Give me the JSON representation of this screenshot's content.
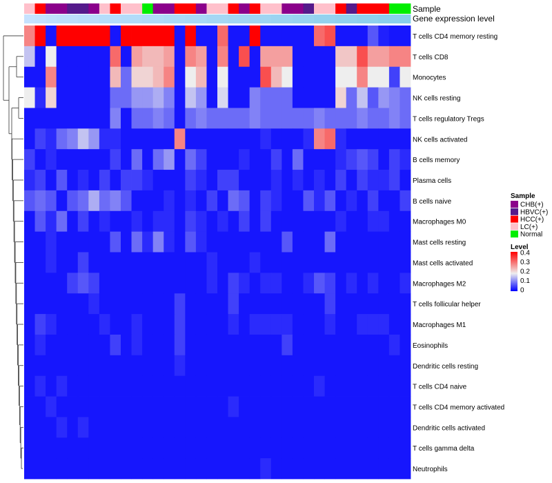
{
  "chart_data": {
    "type": "heatmap",
    "title": "",
    "annotation_labels": [
      "Sample",
      "Gene expression level"
    ],
    "rows": [
      "T cells CD4 memory resting",
      "T cells CD8",
      "Monocytes",
      "NK cells resting",
      "T cells regulatory  Tregs",
      "NK cells activated",
      "B cells memory",
      "Plasma cells",
      "B cells naive",
      "Macrophages M0",
      "Mast cells resting",
      "Mast cells activated",
      "Macrophages M2",
      "T cells follicular helper",
      "Macrophages M1",
      "Eosinophils",
      "Dendritic cells resting",
      "T cells CD4 naive",
      "T cells CD4 memory activated",
      "Dendritic cells activated",
      "T cells gamma delta",
      "Neutrophils"
    ],
    "sample_annotation": [
      "LC(+)",
      "HCC(+)",
      "CHB(+)",
      "CHB(+)",
      "HBVC(+)",
      "HBVC(+)",
      "CHB(+)",
      "LC(+)",
      "HCC(+)",
      "LC(+)",
      "LC(+)",
      "Normal",
      "CHB(+)",
      "CHB(+)",
      "HCC(+)",
      "HCC(+)",
      "CHB(+)",
      "LC(+)",
      "LC(+)",
      "HCC(+)",
      "CHB(+)",
      "HCC(+)",
      "LC(+)",
      "LC(+)",
      "CHB(+)",
      "CHB(+)",
      "HBVC(+)",
      "LC(+)",
      "LC(+)",
      "HCC(+)",
      "HBVC(+)",
      "HCC(+)",
      "HCC(+)",
      "HCC(+)",
      "Normal",
      "Normal"
    ],
    "level_annotation": [
      0.27,
      0.28,
      0.29,
      0.3,
      0.3,
      0.31,
      0.31,
      0.32,
      0.32,
      0.33,
      0.33,
      0.34,
      0.34,
      0.35,
      0.35,
      0.36,
      0.36,
      0.37,
      0.37,
      0.38,
      0.38,
      0.39,
      0.39,
      0.4,
      0.4,
      0.41,
      0.41,
      0.42,
      0.42,
      0.43,
      0.43,
      0.44,
      0.44,
      0.45,
      0.45,
      0.46
    ],
    "values": [
      [
        0.3,
        0.4,
        0.02,
        0.4,
        0.4,
        0.4,
        0.4,
        0.4,
        0.02,
        0.4,
        0.4,
        0.4,
        0.4,
        0.4,
        0.02,
        0.4,
        0.02,
        0.02,
        0.32,
        0.02,
        0.02,
        0.4,
        0.02,
        0.02,
        0.02,
        0.02,
        0.02,
        0.32,
        0.34,
        0.02,
        0.02,
        0.02,
        0.08,
        0.03,
        0.02,
        0.02
      ],
      [
        0.18,
        0.02,
        0.22,
        0.02,
        0.02,
        0.02,
        0.02,
        0.02,
        0.32,
        0.02,
        0.28,
        0.26,
        0.26,
        0.28,
        0.02,
        0.3,
        0.28,
        0.02,
        0.3,
        0.02,
        0.34,
        0.02,
        0.28,
        0.28,
        0.28,
        0.02,
        0.02,
        0.02,
        0.02,
        0.25,
        0.25,
        0.34,
        0.28,
        0.28,
        0.3,
        0.3
      ],
      [
        0.02,
        0.02,
        0.3,
        0.02,
        0.02,
        0.02,
        0.02,
        0.02,
        0.26,
        0.1,
        0.24,
        0.24,
        0.26,
        0.3,
        0.02,
        0.22,
        0.26,
        0.02,
        0.22,
        0.02,
        0.02,
        0.02,
        0.34,
        0.26,
        0.22,
        0.02,
        0.02,
        0.02,
        0.02,
        0.22,
        0.22,
        0.3,
        0.22,
        0.22,
        0.06,
        0.22
      ],
      [
        0.22,
        0.04,
        0.24,
        0.02,
        0.02,
        0.02,
        0.02,
        0.02,
        0.1,
        0.1,
        0.14,
        0.14,
        0.16,
        0.12,
        0.02,
        0.18,
        0.14,
        0.02,
        0.2,
        0.02,
        0.02,
        0.12,
        0.1,
        0.1,
        0.1,
        0.02,
        0.02,
        0.02,
        0.02,
        0.24,
        0.1,
        0.18,
        0.08,
        0.14,
        0.12,
        0.1
      ],
      [
        0.02,
        0.02,
        0.02,
        0.02,
        0.02,
        0.02,
        0.02,
        0.02,
        0.12,
        0.02,
        0.1,
        0.1,
        0.12,
        0.1,
        0.02,
        0.1,
        0.12,
        0.1,
        0.1,
        0.1,
        0.1,
        0.12,
        0.1,
        0.1,
        0.1,
        0.1,
        0.1,
        0.12,
        0.1,
        0.1,
        0.1,
        0.12,
        0.1,
        0.1,
        0.12,
        0.1
      ],
      [
        0.02,
        0.06,
        0.04,
        0.1,
        0.12,
        0.18,
        0.14,
        0.04,
        0.04,
        0.02,
        0.02,
        0.02,
        0.02,
        0.02,
        0.3,
        0.02,
        0.02,
        0.02,
        0.02,
        0.02,
        0.02,
        0.02,
        0.04,
        0.02,
        0.02,
        0.02,
        0.04,
        0.3,
        0.32,
        0.04,
        0.02,
        0.02,
        0.02,
        0.02,
        0.02,
        0.02
      ],
      [
        0.06,
        0.02,
        0.04,
        0.02,
        0.02,
        0.02,
        0.02,
        0.02,
        0.06,
        0.02,
        0.1,
        0.02,
        0.1,
        0.14,
        0.02,
        0.1,
        0.06,
        0.02,
        0.02,
        0.02,
        0.04,
        0.02,
        0.02,
        0.06,
        0.02,
        0.1,
        0.02,
        0.02,
        0.02,
        0.04,
        0.06,
        0.08,
        0.06,
        0.02,
        0.06,
        0.04
      ],
      [
        0.04,
        0.06,
        0.02,
        0.08,
        0.02,
        0.04,
        0.02,
        0.06,
        0.02,
        0.06,
        0.06,
        0.04,
        0.02,
        0.02,
        0.02,
        0.06,
        0.04,
        0.02,
        0.06,
        0.06,
        0.02,
        0.02,
        0.02,
        0.04,
        0.02,
        0.04,
        0.02,
        0.04,
        0.02,
        0.06,
        0.02,
        0.06,
        0.04,
        0.04,
        0.06,
        0.02
      ],
      [
        0.08,
        0.1,
        0.08,
        0.02,
        0.08,
        0.1,
        0.16,
        0.1,
        0.12,
        0.08,
        0.02,
        0.02,
        0.02,
        0.04,
        0.02,
        0.04,
        0.02,
        0.06,
        0.02,
        0.1,
        0.08,
        0.02,
        0.06,
        0.04,
        0.02,
        0.02,
        0.08,
        0.04,
        0.08,
        0.02,
        0.04,
        0.02,
        0.06,
        0.02,
        0.02,
        0.06
      ],
      [
        0.02,
        0.08,
        0.04,
        0.1,
        0.02,
        0.06,
        0.02,
        0.04,
        0.02,
        0.02,
        0.04,
        0.02,
        0.04,
        0.04,
        0.02,
        0.06,
        0.04,
        0.02,
        0.04,
        0.02,
        0.06,
        0.02,
        0.06,
        0.02,
        0.02,
        0.02,
        0.02,
        0.02,
        0.02,
        0.04,
        0.02,
        0.02,
        0.04,
        0.04,
        0.02,
        0.02
      ],
      [
        0.02,
        0.02,
        0.04,
        0.02,
        0.02,
        0.02,
        0.02,
        0.02,
        0.08,
        0.02,
        0.1,
        0.04,
        0.12,
        0.04,
        0.02,
        0.08,
        0.04,
        0.02,
        0.02,
        0.02,
        0.02,
        0.02,
        0.02,
        0.02,
        0.08,
        0.02,
        0.02,
        0.02,
        0.1,
        0.02,
        0.02,
        0.02,
        0.02,
        0.02,
        0.02,
        0.02
      ],
      [
        0.02,
        0.02,
        0.04,
        0.02,
        0.02,
        0.06,
        0.02,
        0.02,
        0.02,
        0.02,
        0.02,
        0.02,
        0.02,
        0.02,
        0.02,
        0.02,
        0.02,
        0.04,
        0.02,
        0.02,
        0.02,
        0.04,
        0.02,
        0.02,
        0.02,
        0.02,
        0.02,
        0.02,
        0.02,
        0.02,
        0.02,
        0.02,
        0.02,
        0.02,
        0.02,
        0.02
      ],
      [
        0.02,
        0.02,
        0.02,
        0.02,
        0.06,
        0.08,
        0.06,
        0.02,
        0.02,
        0.02,
        0.02,
        0.02,
        0.02,
        0.02,
        0.02,
        0.02,
        0.02,
        0.04,
        0.02,
        0.06,
        0.04,
        0.02,
        0.04,
        0.04,
        0.02,
        0.02,
        0.04,
        0.08,
        0.06,
        0.02,
        0.04,
        0.02,
        0.04,
        0.02,
        0.02,
        0.04
      ],
      [
        0.02,
        0.02,
        0.02,
        0.02,
        0.02,
        0.02,
        0.04,
        0.02,
        0.02,
        0.02,
        0.02,
        0.02,
        0.02,
        0.02,
        0.06,
        0.02,
        0.02,
        0.02,
        0.02,
        0.06,
        0.02,
        0.02,
        0.02,
        0.02,
        0.02,
        0.02,
        0.02,
        0.02,
        0.06,
        0.02,
        0.02,
        0.02,
        0.02,
        0.02,
        0.02,
        0.02
      ],
      [
        0.02,
        0.06,
        0.04,
        0.02,
        0.02,
        0.02,
        0.02,
        0.04,
        0.02,
        0.02,
        0.04,
        0.02,
        0.02,
        0.02,
        0.06,
        0.02,
        0.02,
        0.02,
        0.02,
        0.04,
        0.02,
        0.04,
        0.04,
        0.04,
        0.04,
        0.02,
        0.02,
        0.02,
        0.04,
        0.02,
        0.02,
        0.04,
        0.04,
        0.04,
        0.02,
        0.02
      ],
      [
        0.02,
        0.04,
        0.02,
        0.02,
        0.02,
        0.02,
        0.02,
        0.02,
        0.06,
        0.02,
        0.04,
        0.02,
        0.02,
        0.02,
        0.06,
        0.02,
        0.02,
        0.02,
        0.02,
        0.02,
        0.02,
        0.02,
        0.02,
        0.02,
        0.06,
        0.02,
        0.02,
        0.02,
        0.02,
        0.02,
        0.02,
        0.02,
        0.02,
        0.02,
        0.04,
        0.02
      ],
      [
        0.02,
        0.02,
        0.02,
        0.02,
        0.02,
        0.02,
        0.02,
        0.02,
        0.02,
        0.02,
        0.02,
        0.02,
        0.02,
        0.02,
        0.04,
        0.02,
        0.02,
        0.02,
        0.02,
        0.02,
        0.02,
        0.02,
        0.02,
        0.02,
        0.02,
        0.02,
        0.02,
        0.02,
        0.02,
        0.02,
        0.02,
        0.02,
        0.02,
        0.02,
        0.02,
        0.02
      ],
      [
        0.02,
        0.04,
        0.02,
        0.04,
        0.02,
        0.02,
        0.02,
        0.02,
        0.02,
        0.02,
        0.02,
        0.02,
        0.02,
        0.02,
        0.02,
        0.02,
        0.02,
        0.02,
        0.02,
        0.02,
        0.02,
        0.02,
        0.02,
        0.02,
        0.02,
        0.02,
        0.02,
        0.04,
        0.02,
        0.02,
        0.02,
        0.02,
        0.02,
        0.02,
        0.02,
        0.02
      ],
      [
        0.02,
        0.02,
        0.04,
        0.02,
        0.02,
        0.02,
        0.02,
        0.02,
        0.02,
        0.02,
        0.02,
        0.02,
        0.02,
        0.02,
        0.02,
        0.02,
        0.02,
        0.02,
        0.02,
        0.04,
        0.02,
        0.02,
        0.02,
        0.02,
        0.02,
        0.02,
        0.02,
        0.02,
        0.02,
        0.02,
        0.02,
        0.02,
        0.02,
        0.02,
        0.02,
        0.02
      ],
      [
        0.02,
        0.02,
        0.02,
        0.04,
        0.02,
        0.04,
        0.02,
        0.02,
        0.02,
        0.02,
        0.02,
        0.02,
        0.02,
        0.02,
        0.02,
        0.02,
        0.02,
        0.02,
        0.02,
        0.02,
        0.02,
        0.02,
        0.02,
        0.02,
        0.02,
        0.02,
        0.02,
        0.02,
        0.02,
        0.02,
        0.02,
        0.02,
        0.02,
        0.02,
        0.02,
        0.02
      ],
      [
        0.02,
        0.02,
        0.02,
        0.02,
        0.02,
        0.02,
        0.02,
        0.02,
        0.02,
        0.02,
        0.02,
        0.02,
        0.02,
        0.02,
        0.02,
        0.02,
        0.02,
        0.02,
        0.02,
        0.02,
        0.02,
        0.02,
        0.02,
        0.02,
        0.02,
        0.02,
        0.02,
        0.02,
        0.02,
        0.02,
        0.02,
        0.02,
        0.02,
        0.02,
        0.02,
        0.02
      ],
      [
        0.02,
        0.02,
        0.02,
        0.02,
        0.02,
        0.02,
        0.02,
        0.02,
        0.02,
        0.02,
        0.02,
        0.02,
        0.02,
        0.02,
        0.02,
        0.02,
        0.02,
        0.02,
        0.02,
        0.02,
        0.02,
        0.02,
        0.04,
        0.02,
        0.02,
        0.02,
        0.02,
        0.02,
        0.02,
        0.02,
        0.02,
        0.02,
        0.02,
        0.02,
        0.02,
        0.02
      ]
    ],
    "color_scale": {
      "min": 0,
      "max": 0.4,
      "low": "#0000ff",
      "mid": "#eeeeee",
      "high": "#ff0000"
    },
    "legend_sample": {
      "title": "Sample",
      "entries": [
        {
          "label": "CHB(+)",
          "color": "#8b008b"
        },
        {
          "label": "HBVC(+)",
          "color": "#551a8b"
        },
        {
          "label": "HCC(+)",
          "color": "#ff0000"
        },
        {
          "label": "LC(+)",
          "color": "#ffc0cb"
        },
        {
          "label": "Normal",
          "color": "#00ee00"
        }
      ]
    },
    "legend_level": {
      "title": "Level",
      "ticks": [
        "0.4",
        "0.3",
        "0.2",
        "0.1",
        "0"
      ]
    },
    "annotation_level_colors": {
      "low": "#c6e2ff",
      "high": "#87ceeb"
    }
  }
}
